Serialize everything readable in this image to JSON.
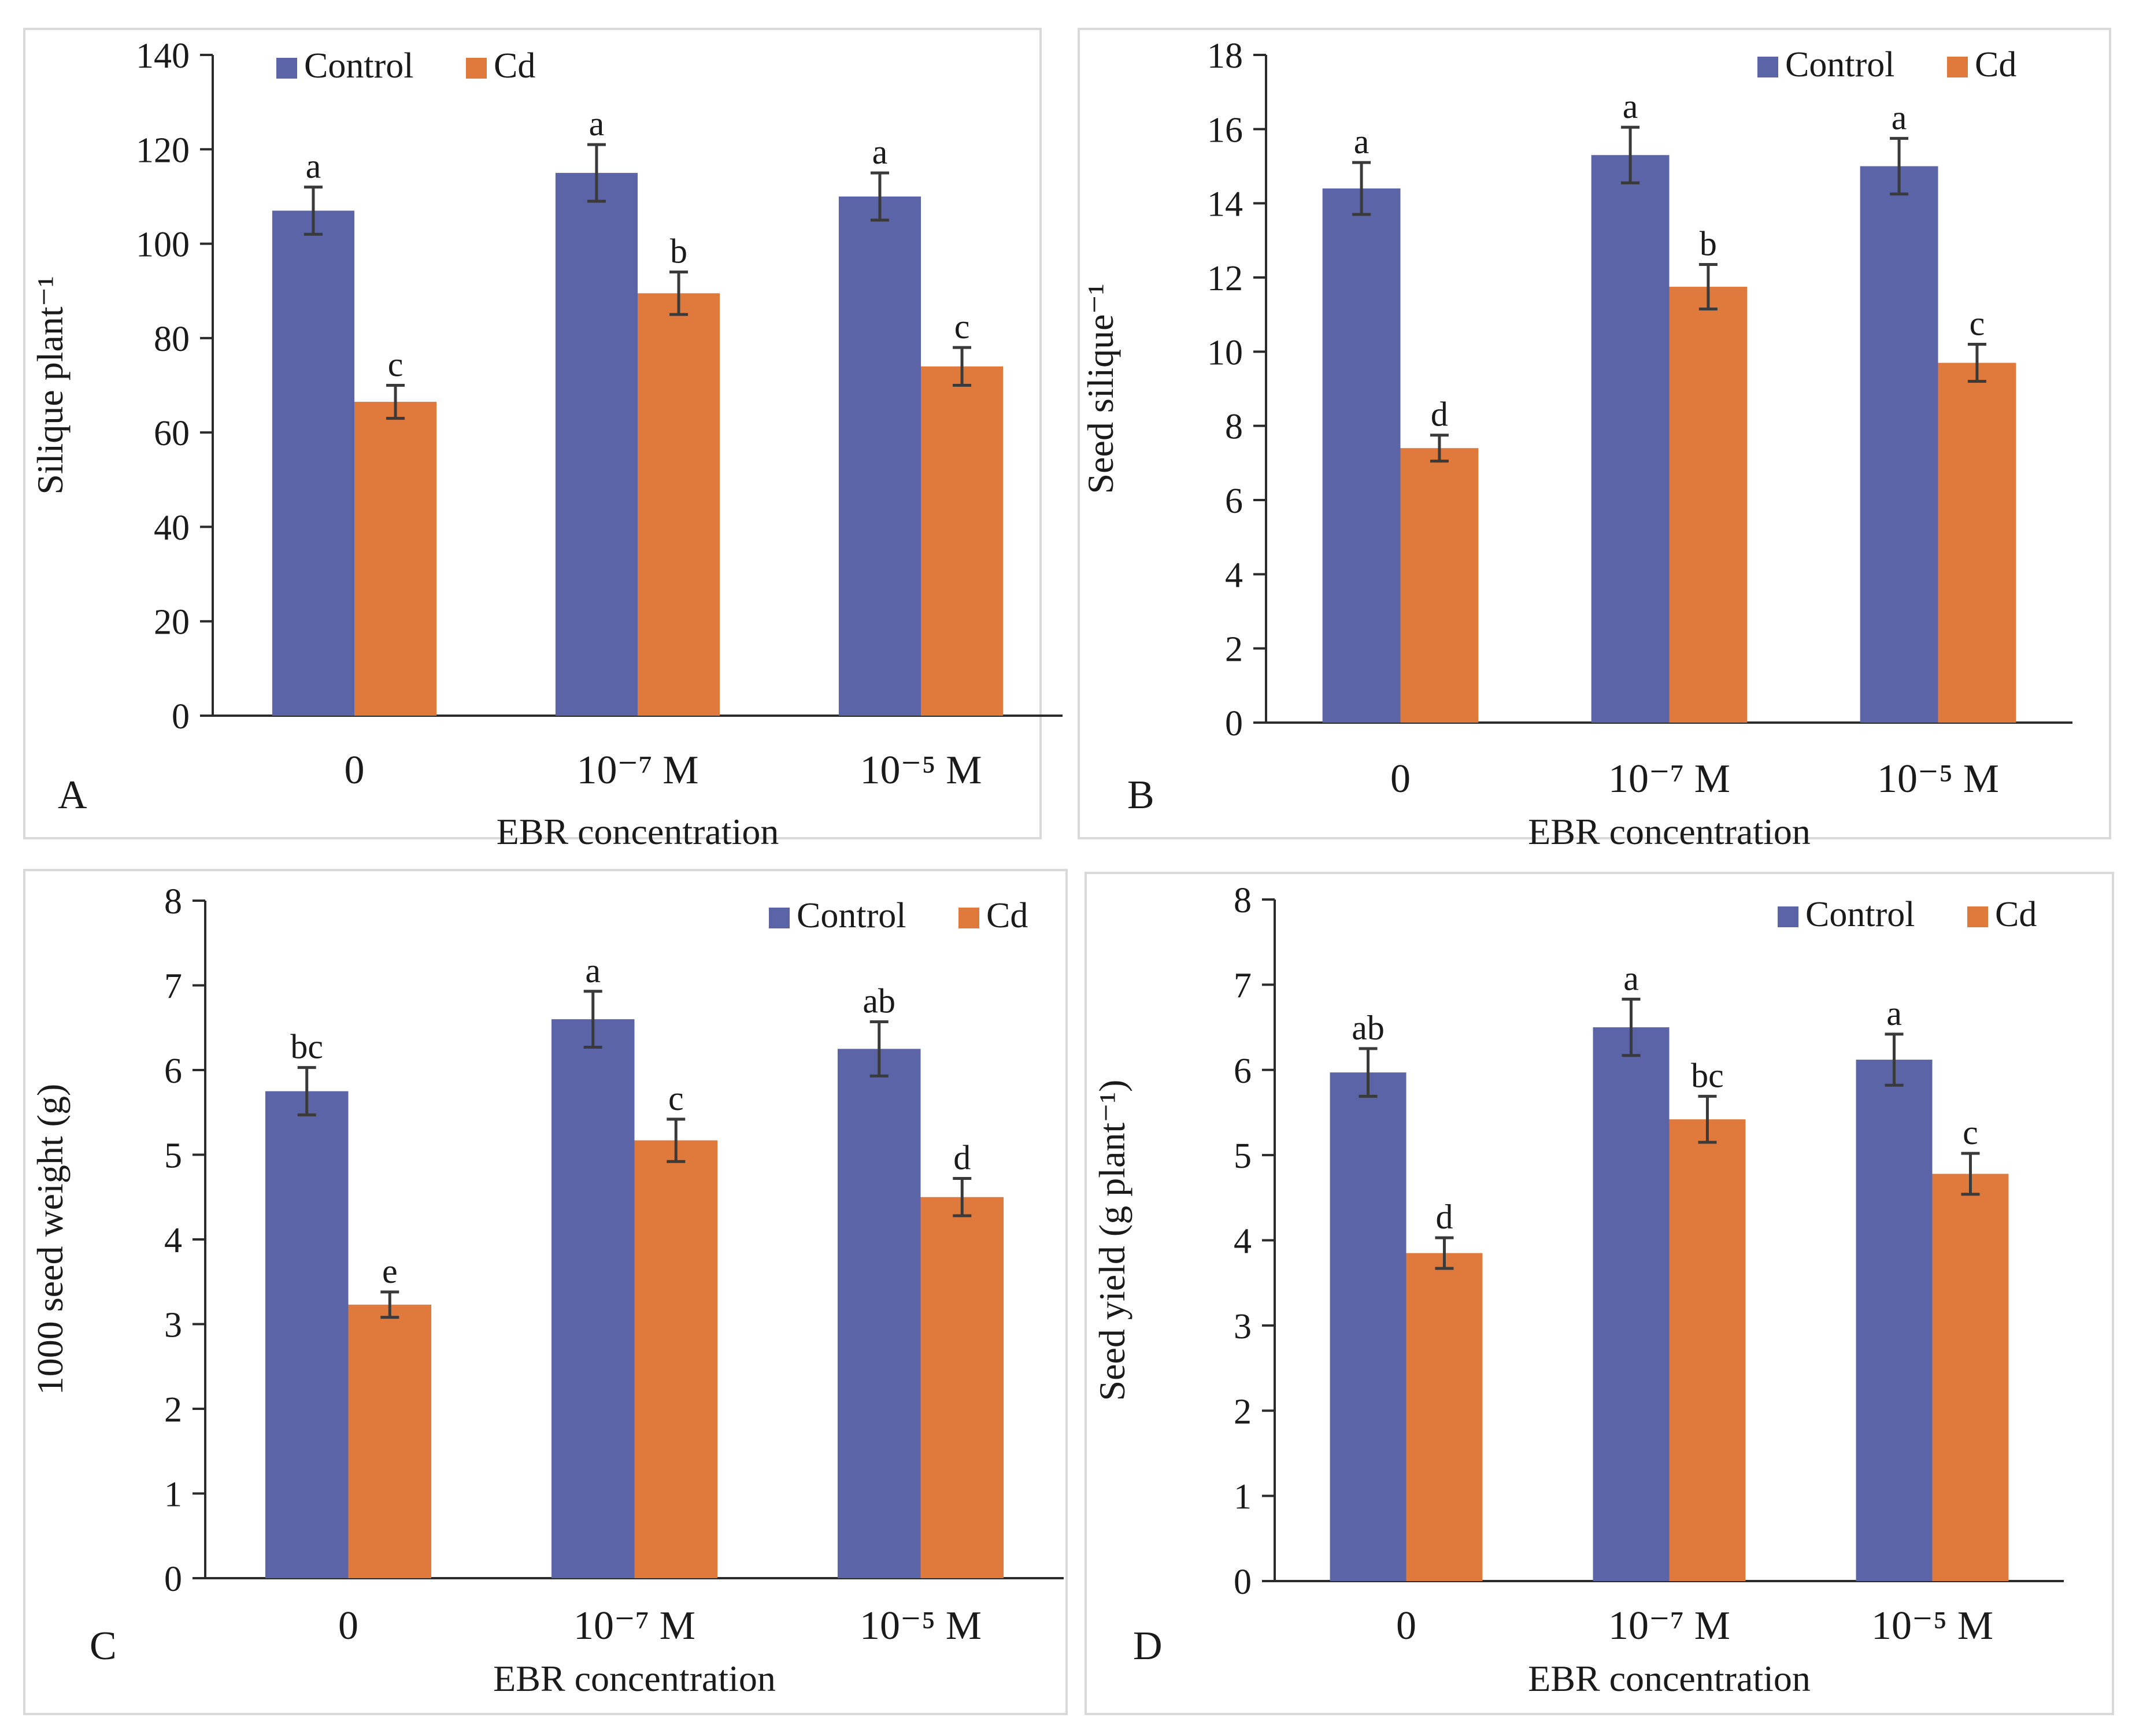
{
  "colors": {
    "control": "#5b64a6",
    "cd": "#e07a3c",
    "axis": "#2b2b2b",
    "frame": "#d9d9d9",
    "error_bar": "#3a3a3a"
  },
  "chart_data": [
    {
      "type": "bar",
      "panel_label": "A",
      "ylabel": "Silique plant⁻¹",
      "xlabel": "EBR concentration",
      "categories": [
        "0",
        "10⁻⁷ M",
        "10⁻⁵ M"
      ],
      "ylim": [
        0,
        140
      ],
      "yticks": [
        0,
        20,
        40,
        60,
        80,
        100,
        120,
        140
      ],
      "legend": [
        "Control",
        "Cd"
      ],
      "series": [
        {
          "name": "Control",
          "values": [
            107,
            115,
            110
          ],
          "errors": [
            5,
            6,
            5
          ],
          "letters": [
            "a",
            "a",
            "a"
          ]
        },
        {
          "name": "Cd",
          "values": [
            66.5,
            89.5,
            74
          ],
          "errors": [
            3.5,
            4.5,
            4
          ],
          "letters": [
            "c",
            "b",
            "c"
          ]
        }
      ]
    },
    {
      "type": "bar",
      "panel_label": "B",
      "ylabel": "Seed  silique⁻¹",
      "xlabel": "EBR concentration",
      "categories": [
        "0",
        "10⁻⁷ M",
        "10⁻⁵ M"
      ],
      "ylim": [
        0,
        18
      ],
      "yticks": [
        0,
        2,
        4,
        6,
        8,
        10,
        12,
        14,
        16,
        18
      ],
      "legend": [
        "Control",
        "Cd"
      ],
      "series": [
        {
          "name": "Control",
          "values": [
            14.4,
            15.3,
            15.0
          ],
          "errors": [
            0.7,
            0.75,
            0.75
          ],
          "letters": [
            "a",
            "a",
            "a"
          ]
        },
        {
          "name": "Cd",
          "values": [
            7.4,
            11.75,
            9.7
          ],
          "errors": [
            0.35,
            0.6,
            0.5
          ],
          "letters": [
            "d",
            "b",
            "c"
          ]
        }
      ]
    },
    {
      "type": "bar",
      "panel_label": "C",
      "ylabel": "1000 seed weight (g)",
      "xlabel": "EBR concentration",
      "categories": [
        "0",
        "10⁻⁷ M",
        "10⁻⁵ M"
      ],
      "ylim": [
        0,
        8
      ],
      "yticks": [
        0,
        1,
        2,
        3,
        4,
        5,
        6,
        7,
        8
      ],
      "legend": [
        "Control",
        "Cd"
      ],
      "series": [
        {
          "name": "Control",
          "values": [
            5.75,
            6.6,
            6.25
          ],
          "errors": [
            0.28,
            0.33,
            0.32
          ],
          "letters": [
            "bc",
            "a",
            "ab"
          ]
        },
        {
          "name": "Cd",
          "values": [
            3.23,
            5.17,
            4.5
          ],
          "errors": [
            0.15,
            0.25,
            0.22
          ],
          "letters": [
            "e",
            "c",
            "d"
          ]
        }
      ]
    },
    {
      "type": "bar",
      "panel_label": "D",
      "ylabel": "Seed yield (g plant⁻¹)",
      "xlabel": "EBR concentration",
      "categories": [
        "0",
        "10⁻⁷ M",
        "10⁻⁵ M"
      ],
      "ylim": [
        0,
        8
      ],
      "yticks": [
        0,
        1,
        2,
        3,
        4,
        5,
        6,
        7,
        8
      ],
      "legend": [
        "Control",
        "Cd"
      ],
      "series": [
        {
          "name": "Control",
          "values": [
            5.97,
            6.5,
            6.12
          ],
          "errors": [
            0.28,
            0.33,
            0.3
          ],
          "letters": [
            "ab",
            "a",
            "a"
          ]
        },
        {
          "name": "Cd",
          "values": [
            3.85,
            5.42,
            4.78
          ],
          "errors": [
            0.18,
            0.27,
            0.24
          ],
          "letters": [
            "d",
            "bc",
            "c"
          ]
        }
      ]
    }
  ]
}
